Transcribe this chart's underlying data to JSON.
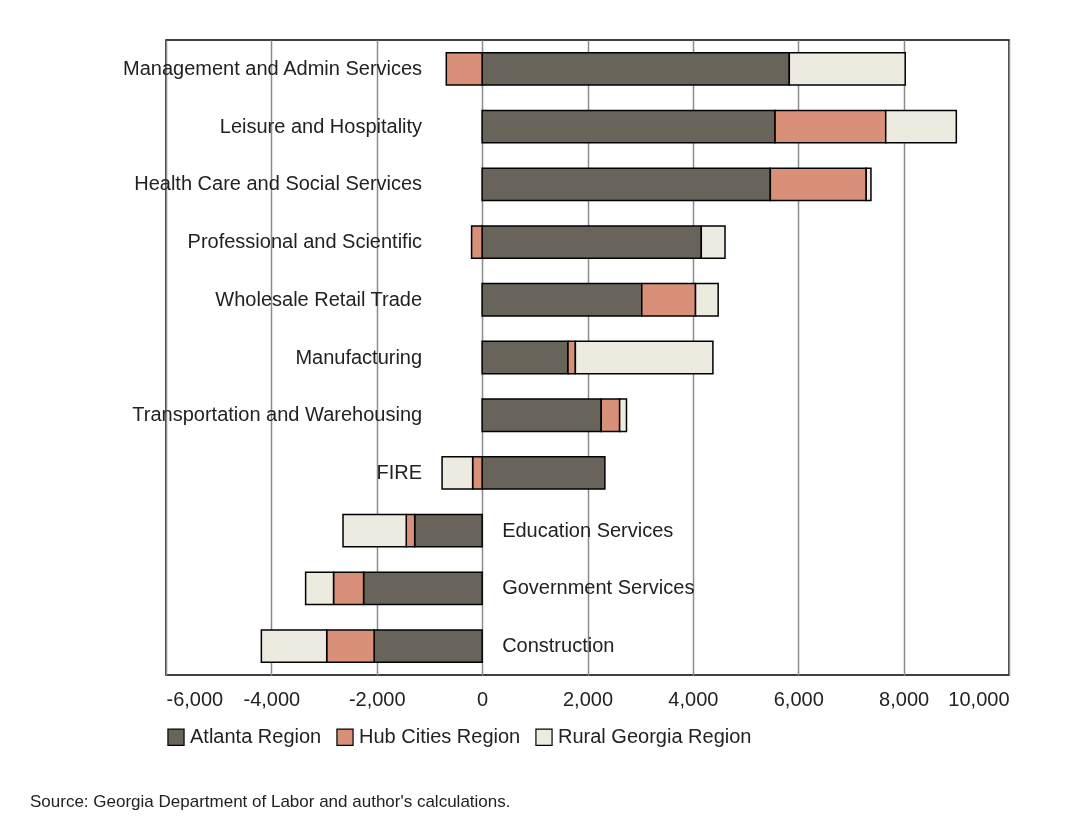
{
  "chart_data": {
    "type": "bar",
    "orientation": "horizontal",
    "stacked": true,
    "categories": [
      "Management and Admin Services",
      "Leisure and Hospitality",
      "Health Care and Social Services",
      "Professional and Scientific",
      "Wholesale Retail Trade",
      "Manufacturing",
      "Transportation and Warehousing",
      "FIRE",
      "Education Services",
      "Government Services",
      "Construction"
    ],
    "series": [
      {
        "name": "Atlanta Region",
        "color": "#686459",
        "values": [
          5830,
          5560,
          5470,
          4160,
          3030,
          1630,
          2260,
          2330,
          -1280,
          -2250,
          -2050
        ]
      },
      {
        "name": "Hub Cities Region",
        "color": "#d99078",
        "values": [
          -680,
          2100,
          1820,
          -200,
          1020,
          140,
          350,
          -180,
          -160,
          -570,
          -900
        ]
      },
      {
        "name": "Rural Georgia Region",
        "color": "#edebe0",
        "values": [
          2200,
          1340,
          90,
          450,
          430,
          2610,
          130,
          -580,
          -1200,
          -530,
          -1240
        ]
      }
    ],
    "xlim": [
      -6000,
      10000
    ],
    "xticks": [
      {
        "value": -6000,
        "label": "-6,000"
      },
      {
        "value": -4000,
        "label": "-4,000"
      },
      {
        "value": -2000,
        "label": "-2,000"
      },
      0,
      {
        "value": 2000,
        "label": "2,000"
      },
      {
        "value": 4000,
        "label": "4,000"
      },
      {
        "value": 6000,
        "label": "6,000"
      },
      {
        "value": 8000,
        "label": "8,000"
      },
      {
        "value": 10000,
        "label": "10,000"
      }
    ],
    "grid": "x",
    "legend": "bottom",
    "annotations": [
      "Source:  Georgia Department of Labor and author's calculations."
    ]
  }
}
